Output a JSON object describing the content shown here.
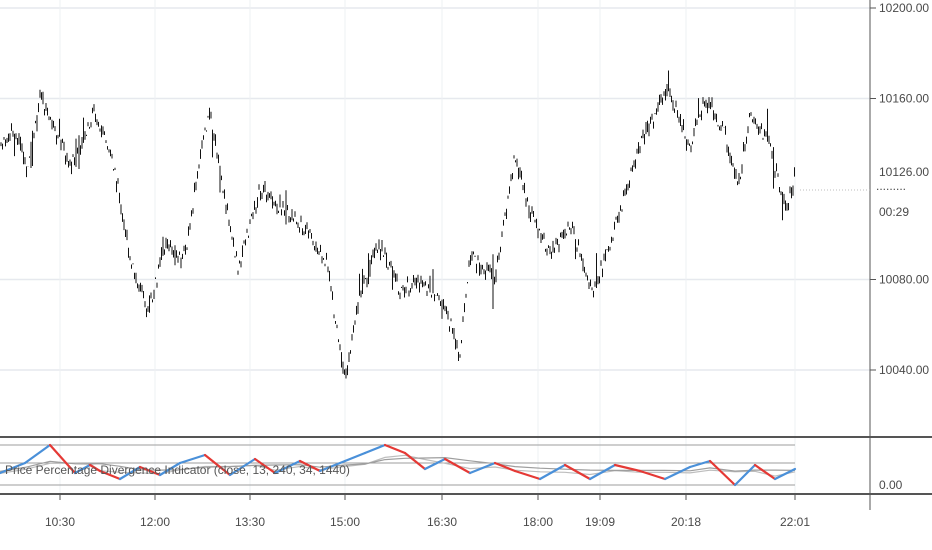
{
  "chart_data": [
    {
      "type": "ohlc",
      "title": "",
      "ylim": [
        10020,
        10210
      ],
      "y_ticks": [
        "10200.00",
        "10160.00",
        "10080.00",
        "10040.00"
      ],
      "price_label": "10126.00",
      "countdown_label": "00:29",
      "x_ticks": [
        "10:30",
        "12:00",
        "13:30",
        "15:00",
        "16:30",
        "18:00",
        "19:09",
        "20:18",
        "22:01"
      ],
      "grid": true,
      "price_path": [
        [
          0,
          10140
        ],
        [
          15,
          10145
        ],
        [
          28,
          10128
        ],
        [
          40,
          10160
        ],
        [
          52,
          10150
        ],
        [
          70,
          10130
        ],
        [
          95,
          10155
        ],
        [
          115,
          10128
        ],
        [
          130,
          10090
        ],
        [
          148,
          10065
        ],
        [
          165,
          10095
        ],
        [
          185,
          10090
        ],
        [
          200,
          10135
        ],
        [
          210,
          10155
        ],
        [
          225,
          10115
        ],
        [
          238,
          10085
        ],
        [
          260,
          10120
        ],
        [
          285,
          10110
        ],
        [
          310,
          10100
        ],
        [
          328,
          10085
        ],
        [
          345,
          10035
        ],
        [
          360,
          10075
        ],
        [
          380,
          10095
        ],
        [
          400,
          10075
        ],
        [
          420,
          10080
        ],
        [
          445,
          10068
        ],
        [
          460,
          10045
        ],
        [
          470,
          10090
        ],
        [
          495,
          10080
        ],
        [
          515,
          10135
        ],
        [
          530,
          10110
        ],
        [
          550,
          10090
        ],
        [
          570,
          10105
        ],
        [
          592,
          10075
        ],
        [
          610,
          10095
        ],
        [
          640,
          10140
        ],
        [
          668,
          10165
        ],
        [
          690,
          10138
        ],
        [
          705,
          10160
        ],
        [
          725,
          10145
        ],
        [
          738,
          10120
        ],
        [
          750,
          10155
        ],
        [
          770,
          10140
        ],
        [
          785,
          10110
        ],
        [
          795,
          10125
        ]
      ]
    },
    {
      "type": "line",
      "name": "Price Percentage Divergence Indicator (close, 13, 240, 34, 1440)",
      "y_ticks": [
        "0.00"
      ],
      "up_color": "#4a90d9",
      "down_color": "#e53935",
      "points": [
        [
          0,
          0.3
        ],
        [
          25,
          0.55
        ],
        [
          50,
          1.0
        ],
        [
          75,
          0.3
        ],
        [
          90,
          0.5
        ],
        [
          100,
          0.35
        ],
        [
          120,
          0.15
        ],
        [
          140,
          0.45
        ],
        [
          160,
          0.25
        ],
        [
          180,
          0.55
        ],
        [
          205,
          0.75
        ],
        [
          230,
          0.25
        ],
        [
          255,
          0.65
        ],
        [
          275,
          0.3
        ],
        [
          300,
          0.6
        ],
        [
          320,
          0.35
        ],
        [
          345,
          0.6
        ],
        [
          365,
          0.8
        ],
        [
          385,
          1.0
        ],
        [
          405,
          0.8
        ],
        [
          425,
          0.4
        ],
        [
          445,
          0.65
        ],
        [
          470,
          0.3
        ],
        [
          495,
          0.55
        ],
        [
          515,
          0.35
        ],
        [
          540,
          0.15
        ],
        [
          565,
          0.5
        ],
        [
          590,
          0.15
        ],
        [
          615,
          0.5
        ],
        [
          640,
          0.35
        ],
        [
          665,
          0.15
        ],
        [
          690,
          0.45
        ],
        [
          710,
          0.6
        ],
        [
          735,
          0.0
        ],
        [
          755,
          0.5
        ],
        [
          775,
          0.15
        ],
        [
          795,
          0.4
        ]
      ]
    }
  ]
}
